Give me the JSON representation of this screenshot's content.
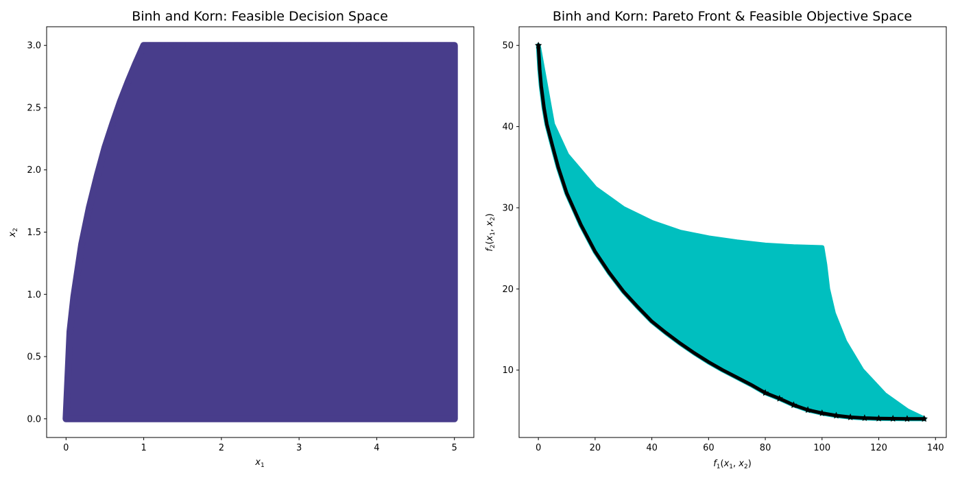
{
  "chart_data": [
    {
      "type": "scatter",
      "title": "Binh and Korn: Feasible Decision Space",
      "xlabel": "x1",
      "ylabel": "x2",
      "xlim": [
        -0.25,
        5.25
      ],
      "ylim": [
        -0.15,
        3.15
      ],
      "xticks": [
        0,
        1,
        2,
        3,
        4,
        5
      ],
      "yticks": [
        0.0,
        0.5,
        1.0,
        1.5,
        2.0,
        2.5,
        3.0
      ],
      "xtick_labels": [
        "0",
        "1",
        "2",
        "3",
        "4",
        "5"
      ],
      "ytick_labels": [
        "0.0",
        "0.5",
        "1.0",
        "1.5",
        "2.0",
        "2.5",
        "3.0"
      ],
      "grid": false,
      "series": [
        {
          "color": "#483d8b",
          "marker": "circle",
          "region": "x1 in [0,5], x2 in [0,3], subject to (x1-5)^2 + x2^2 <= 25 and (x1-8)^2 + (x2+3)^2 >= 7.7",
          "boundary_points": [
            [
              0,
              0
            ],
            [
              0.05,
              0.7
            ],
            [
              0.1,
              0.98
            ],
            [
              0.2,
              1.4
            ],
            [
              0.3,
              1.7
            ],
            [
              0.4,
              1.95
            ],
            [
              0.5,
              2.18
            ],
            [
              0.6,
              2.37
            ],
            [
              0.7,
              2.55
            ],
            [
              0.8,
              2.71
            ],
            [
              0.9,
              2.86
            ],
            [
              1.0,
              3.0
            ],
            [
              5.0,
              3.0
            ],
            [
              5.0,
              0.0
            ]
          ]
        }
      ]
    },
    {
      "type": "scatter",
      "title": "Binh and Korn: Pareto Front & Feasible Objective Space",
      "xlabel": "f1(x1, x2)",
      "ylabel": "f2(x1, x2)",
      "xlim": [
        -6.8,
        143.8
      ],
      "ylim": [
        1.7,
        52.3
      ],
      "xticks": [
        0,
        20,
        40,
        60,
        80,
        100,
        120,
        140
      ],
      "yticks": [
        10,
        20,
        30,
        40,
        50
      ],
      "xtick_labels": [
        "0",
        "20",
        "40",
        "60",
        "80",
        "100",
        "120",
        "140"
      ],
      "ytick_labels": [
        "10",
        "20",
        "30",
        "40",
        "50"
      ],
      "grid": false,
      "series": [
        {
          "color": "#00bfbf",
          "marker": "circle",
          "region": "feasible objective space",
          "upper_boundary": [
            [
              0,
              50
            ],
            [
              5,
              40.3
            ],
            [
              10,
              36.5
            ],
            [
              20,
              32.4
            ],
            [
              30,
              29.9
            ],
            [
              40,
              28.2
            ],
            [
              50,
              27.0
            ],
            [
              60,
              26.3
            ],
            [
              70,
              25.8
            ],
            [
              80,
              25.4
            ],
            [
              90,
              25.2
            ],
            [
              100,
              25.1
            ]
          ],
          "right_boundary": [
            [
              100,
              25.1
            ],
            [
              101,
              23.0
            ],
            [
              102,
              20.0
            ],
            [
              104,
              17.0
            ],
            [
              108,
              13.5
            ],
            [
              114,
              10.0
            ],
            [
              122,
              7.0
            ],
            [
              130,
              5.0
            ],
            [
              136,
              4.0
            ]
          ]
        },
        {
          "color": "#000000",
          "marker": "star",
          "label": "Pareto front",
          "points": [
            [
              0,
              50
            ],
            [
              0.5,
              47
            ],
            [
              1,
              45
            ],
            [
              2,
              42.3
            ],
            [
              3,
              40.3
            ],
            [
              5,
              37.6
            ],
            [
              7,
              35
            ],
            [
              10,
              31.8
            ],
            [
              15,
              27.9
            ],
            [
              20,
              24.6
            ],
            [
              25,
              22
            ],
            [
              30,
              19.7
            ],
            [
              35,
              17.8
            ],
            [
              40,
              16
            ],
            [
              45,
              14.6
            ],
            [
              50,
              13.3
            ],
            [
              55,
              12.1
            ],
            [
              60,
              11
            ],
            [
              65,
              10
            ],
            [
              70,
              9.1
            ],
            [
              75,
              8.2
            ],
            [
              80,
              7.2
            ],
            [
              85,
              6.5
            ],
            [
              90,
              5.7
            ],
            [
              95,
              5.1
            ],
            [
              100,
              4.7
            ],
            [
              105,
              4.4
            ],
            [
              110,
              4.2
            ],
            [
              115,
              4.1
            ],
            [
              120,
              4.05
            ],
            [
              125,
              4.02
            ],
            [
              130,
              4.0
            ],
            [
              136,
              4.0
            ]
          ]
        }
      ]
    }
  ]
}
